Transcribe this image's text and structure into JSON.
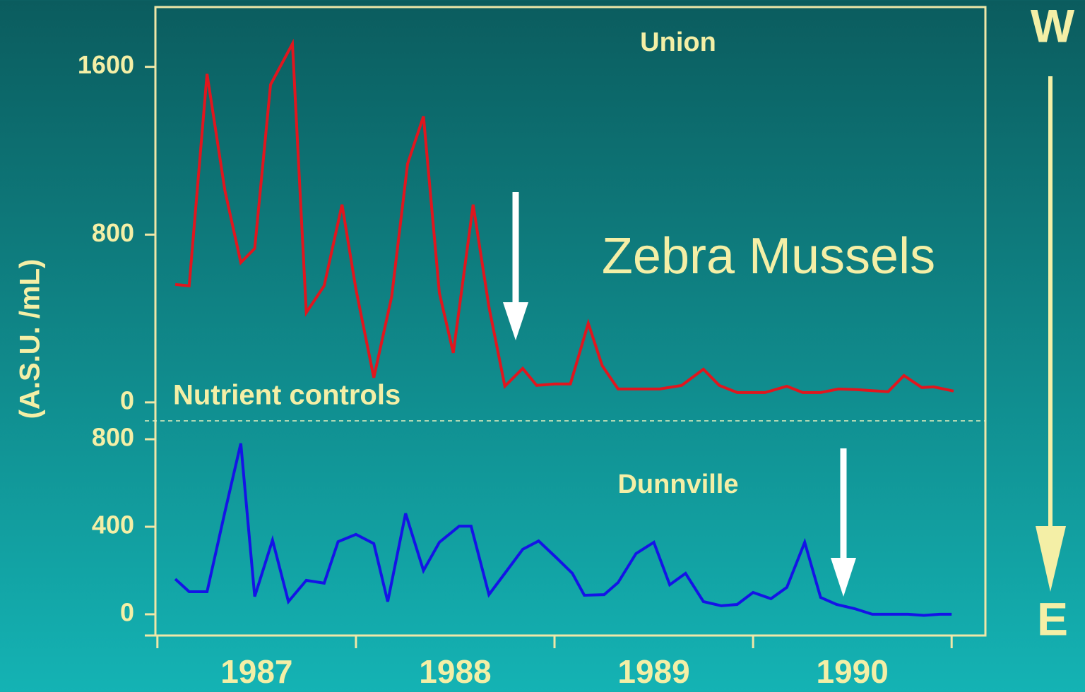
{
  "chart_data": [
    {
      "type": "line",
      "ylabel": "(A.S.U. /mL)",
      "annotations": [
        "Zebra Mussels",
        "Nutrient controls",
        "W",
        "E"
      ],
      "xlim": [
        1986.99,
        1991.17
      ],
      "ylim": [
        -88,
        1885
      ],
      "yticks": [
        0,
        800,
        1600
      ],
      "series": [
        {
          "name": "Union",
          "color": "#e0161e",
          "x": [
            1987.09,
            1987.16,
            1987.25,
            1987.34,
            1987.42,
            1987.49,
            1987.57,
            1987.68,
            1987.75,
            1987.84,
            1987.93,
            1988.0,
            1988.09,
            1988.18,
            1988.26,
            1988.34,
            1988.42,
            1988.49,
            1988.59,
            1988.67,
            1988.75,
            1988.84,
            1988.91,
            1989.0,
            1989.08,
            1989.17,
            1989.24,
            1989.32,
            1989.42,
            1989.53,
            1989.64,
            1989.75,
            1989.83,
            1989.92,
            1990.06,
            1990.17,
            1990.25,
            1990.34,
            1990.43,
            1990.52,
            1990.68,
            1990.76,
            1990.85,
            1990.91,
            1991.01
          ],
          "values": [
            562,
            556,
            1566,
            1010,
            667,
            734,
            1515,
            1710,
            428,
            556,
            943,
            539,
            118,
            505,
            1138,
            1364,
            522,
            236,
            943,
            455,
            77,
            162,
            81,
            88,
            88,
            377,
            175,
            64,
            64,
            64,
            81,
            158,
            81,
            47,
            47,
            77,
            47,
            47,
            64,
            61,
            51,
            128,
            71,
            74,
            54
          ]
        }
      ]
    },
    {
      "type": "line",
      "xlim": [
        1986.99,
        1991.17
      ],
      "xticks": [
        {
          "value": 1987.5,
          "label": "1987"
        },
        {
          "value": 1988.5,
          "label": "1988"
        },
        {
          "value": 1989.5,
          "label": "1989"
        },
        {
          "value": 1990.5,
          "label": "1990"
        }
      ],
      "xtick_marks": [
        1987,
        1988,
        1989,
        1990,
        1991
      ],
      "ylim": [
        -97,
        884
      ],
      "yticks": [
        0,
        400,
        800
      ],
      "series": [
        {
          "name": "Dunnville",
          "color": "#1414e6",
          "x": [
            1987.09,
            1987.16,
            1987.25,
            1987.34,
            1987.42,
            1987.49,
            1987.58,
            1987.66,
            1987.75,
            1987.84,
            1987.91,
            1988.0,
            1988.09,
            1988.16,
            1988.25,
            1988.34,
            1988.42,
            1988.52,
            1988.58,
            1988.67,
            1988.75,
            1988.84,
            1988.92,
            1989.01,
            1989.09,
            1989.15,
            1989.25,
            1989.32,
            1989.41,
            1989.5,
            1989.58,
            1989.66,
            1989.75,
            1989.84,
            1989.92,
            1990.0,
            1990.09,
            1990.17,
            1990.26,
            1990.34,
            1990.42,
            1990.51,
            1990.6,
            1990.69,
            1990.78,
            1990.86,
            1990.94,
            1991.0
          ],
          "values": [
            161,
            103,
            103,
            468,
            781,
            81,
            339,
            58,
            155,
            142,
            332,
            365,
            323,
            58,
            461,
            200,
            329,
            403,
            403,
            90,
            187,
            297,
            335,
            258,
            187,
            87,
            90,
            145,
            277,
            329,
            135,
            187,
            58,
            39,
            45,
            100,
            71,
            123,
            329,
            77,
            45,
            26,
            0,
            0,
            0,
            -5,
            0,
            0
          ]
        }
      ]
    }
  ]
}
